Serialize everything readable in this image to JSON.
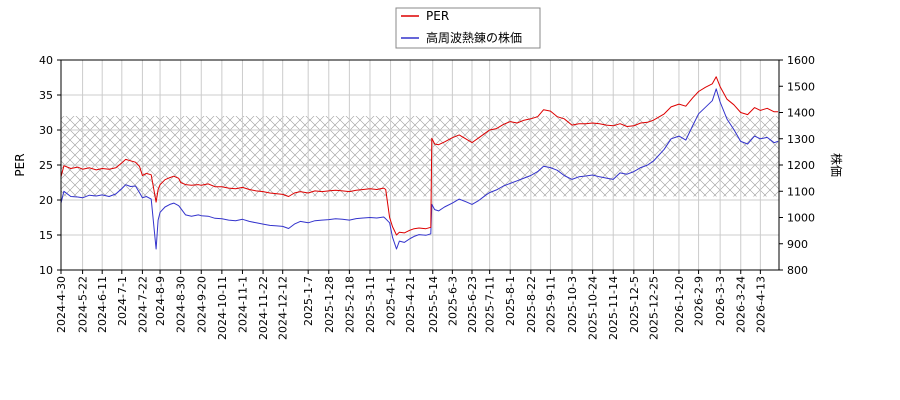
{
  "chart_data": {
    "type": "line",
    "legend": {
      "placement": "top-center",
      "items": [
        {
          "label": "PER",
          "color": "#dd0000"
        },
        {
          "label": "高周波熱錬の株価",
          "color": "#3333cc"
        }
      ]
    },
    "left_axis": {
      "label": "PER",
      "ylim": [
        10,
        40
      ],
      "ticks": [
        10,
        15,
        20,
        25,
        30,
        35,
        40
      ]
    },
    "right_axis": {
      "label": "株価",
      "ylim": [
        800,
        1600
      ],
      "ticks": [
        800,
        900,
        1000,
        1100,
        1200,
        1300,
        1400,
        1500,
        1600
      ]
    },
    "xlim": [
      "2024-04-30",
      "2026-05-02"
    ],
    "x_tick_labels": [
      "2024-4-30",
      "2024-5-22",
      "2024-6-11",
      "2024-7-1",
      "2024-7-22",
      "2024-8-9",
      "2024-8-30",
      "2024-9-20",
      "2024-10-11",
      "2024-11-1",
      "2024-11-22",
      "2024-12-12",
      "2025-1-7",
      "2025-1-28",
      "2025-2-18",
      "2025-3-11",
      "2025-4-1",
      "2025-4-21",
      "2025-5-14",
      "2025-6-3",
      "2025-6-23",
      "2025-7-11",
      "2025-8-1",
      "2025-8-22",
      "2025-9-11",
      "2025-10-3",
      "2025-10-24",
      "2025-11-14",
      "2025-12-5",
      "2025-12-25",
      "2026-1-20",
      "2026-2-9",
      "2026-3-3",
      "2026-3-24",
      "2026-4-13"
    ],
    "band": {
      "axis": "left",
      "range": [
        20.5,
        32
      ],
      "pattern": "crosshatch"
    },
    "grid": true,
    "series": [
      {
        "name": "PER",
        "axis": "left",
        "color": "#dd0000",
        "points": [
          [
            "2024-04-30",
            23.3
          ],
          [
            "2024-05-03",
            24.9
          ],
          [
            "2024-05-10",
            24.5
          ],
          [
            "2024-05-17",
            24.7
          ],
          [
            "2024-05-22",
            24.4
          ],
          [
            "2024-05-29",
            24.6
          ],
          [
            "2024-06-05",
            24.3
          ],
          [
            "2024-06-11",
            24.5
          ],
          [
            "2024-06-18",
            24.4
          ],
          [
            "2024-06-25",
            24.6
          ],
          [
            "2024-07-01",
            25.3
          ],
          [
            "2024-07-05",
            25.8
          ],
          [
            "2024-07-10",
            25.6
          ],
          [
            "2024-07-15",
            25.4
          ],
          [
            "2024-07-19",
            24.8
          ],
          [
            "2024-07-22",
            23.5
          ],
          [
            "2024-07-26",
            23.8
          ],
          [
            "2024-07-31",
            23.6
          ],
          [
            "2024-08-05",
            19.7
          ],
          [
            "2024-08-07",
            21.5
          ],
          [
            "2024-08-09",
            22.2
          ],
          [
            "2024-08-14",
            22.9
          ],
          [
            "2024-08-19",
            23.2
          ],
          [
            "2024-08-23",
            23.4
          ],
          [
            "2024-08-28",
            23.1
          ],
          [
            "2024-08-30",
            22.5
          ],
          [
            "2024-09-04",
            22.2
          ],
          [
            "2024-09-10",
            22.1
          ],
          [
            "2024-09-17",
            22.2
          ],
          [
            "2024-09-20",
            22.1
          ],
          [
            "2024-09-27",
            22.3
          ],
          [
            "2024-10-04",
            21.9
          ],
          [
            "2024-10-11",
            21.9
          ],
          [
            "2024-10-18",
            21.7
          ],
          [
            "2024-10-25",
            21.6
          ],
          [
            "2024-11-01",
            21.8
          ],
          [
            "2024-11-08",
            21.5
          ],
          [
            "2024-11-15",
            21.3
          ],
          [
            "2024-11-22",
            21.2
          ],
          [
            "2024-11-29",
            21.0
          ],
          [
            "2024-12-06",
            20.9
          ],
          [
            "2024-12-12",
            20.8
          ],
          [
            "2024-12-18",
            20.5
          ],
          [
            "2024-12-24",
            21.0
          ],
          [
            "2024-12-30",
            21.2
          ],
          [
            "2025-01-07",
            21.0
          ],
          [
            "2025-01-14",
            21.3
          ],
          [
            "2025-01-21",
            21.2
          ],
          [
            "2025-01-28",
            21.3
          ],
          [
            "2025-02-04",
            21.4
          ],
          [
            "2025-02-11",
            21.3
          ],
          [
            "2025-02-18",
            21.2
          ],
          [
            "2025-02-25",
            21.4
          ],
          [
            "2025-03-04",
            21.5
          ],
          [
            "2025-03-11",
            21.6
          ],
          [
            "2025-03-18",
            21.5
          ],
          [
            "2025-03-25",
            21.7
          ],
          [
            "2025-03-27",
            21.5
          ],
          [
            "2025-03-31",
            17.5
          ],
          [
            "2025-04-03",
            16.2
          ],
          [
            "2025-04-07",
            15.0
          ],
          [
            "2025-04-10",
            15.4
          ],
          [
            "2025-04-15",
            15.3
          ],
          [
            "2025-04-21",
            15.7
          ],
          [
            "2025-04-25",
            15.9
          ],
          [
            "2025-04-30",
            16.0
          ],
          [
            "2025-05-07",
            15.9
          ],
          [
            "2025-05-12",
            16.1
          ],
          [
            "2025-05-13",
            28.8
          ],
          [
            "2025-05-16",
            28.0
          ],
          [
            "2025-05-20",
            27.9
          ],
          [
            "2025-05-26",
            28.3
          ],
          [
            "2025-06-03",
            28.9
          ],
          [
            "2025-06-10",
            29.3
          ],
          [
            "2025-06-17",
            28.7
          ],
          [
            "2025-06-23",
            28.2
          ],
          [
            "2025-06-30",
            28.9
          ],
          [
            "2025-07-07",
            29.6
          ],
          [
            "2025-07-11",
            30.0
          ],
          [
            "2025-07-18",
            30.2
          ],
          [
            "2025-07-25",
            30.8
          ],
          [
            "2025-08-01",
            31.2
          ],
          [
            "2025-08-08",
            31.0
          ],
          [
            "2025-08-15",
            31.4
          ],
          [
            "2025-08-22",
            31.6
          ],
          [
            "2025-08-29",
            31.9
          ],
          [
            "2025-09-04",
            32.9
          ],
          [
            "2025-09-11",
            32.7
          ],
          [
            "2025-09-18",
            31.9
          ],
          [
            "2025-09-25",
            31.6
          ],
          [
            "2025-10-03",
            30.7
          ],
          [
            "2025-10-10",
            30.9
          ],
          [
            "2025-10-17",
            30.9
          ],
          [
            "2025-10-24",
            31.0
          ],
          [
            "2025-10-31",
            30.9
          ],
          [
            "2025-11-07",
            30.7
          ],
          [
            "2025-11-14",
            30.6
          ],
          [
            "2025-11-21",
            30.9
          ],
          [
            "2025-11-28",
            30.5
          ],
          [
            "2025-12-05",
            30.6
          ],
          [
            "2025-12-12",
            31.0
          ],
          [
            "2025-12-19",
            31.1
          ],
          [
            "2025-12-25",
            31.4
          ],
          [
            "2026-01-05",
            32.3
          ],
          [
            "2026-01-12",
            33.3
          ],
          [
            "2026-01-20",
            33.7
          ],
          [
            "2026-01-27",
            33.4
          ],
          [
            "2026-02-03",
            34.6
          ],
          [
            "2026-02-09",
            35.5
          ],
          [
            "2026-02-16",
            36.1
          ],
          [
            "2026-02-23",
            36.6
          ],
          [
            "2026-02-27",
            37.6
          ],
          [
            "2026-03-03",
            36.2
          ],
          [
            "2026-03-10",
            34.4
          ],
          [
            "2026-03-17",
            33.6
          ],
          [
            "2026-03-24",
            32.5
          ],
          [
            "2026-03-31",
            32.2
          ],
          [
            "2026-04-07",
            33.2
          ],
          [
            "2026-04-13",
            32.8
          ],
          [
            "2026-04-20",
            33.1
          ],
          [
            "2026-04-27",
            32.6
          ],
          [
            "2026-05-01",
            32.6
          ]
        ]
      },
      {
        "name": "高周波熱錬の株価",
        "axis": "right",
        "color": "#3333cc",
        "points": [
          [
            "2024-04-30",
            1055
          ],
          [
            "2024-05-03",
            1100
          ],
          [
            "2024-05-10",
            1080
          ],
          [
            "2024-05-17",
            1078
          ],
          [
            "2024-05-22",
            1075
          ],
          [
            "2024-05-29",
            1085
          ],
          [
            "2024-06-05",
            1082
          ],
          [
            "2024-06-11",
            1086
          ],
          [
            "2024-06-18",
            1080
          ],
          [
            "2024-06-25",
            1090
          ],
          [
            "2024-07-01",
            1110
          ],
          [
            "2024-07-05",
            1125
          ],
          [
            "2024-07-10",
            1118
          ],
          [
            "2024-07-15",
            1120
          ],
          [
            "2024-07-19",
            1095
          ],
          [
            "2024-07-22",
            1075
          ],
          [
            "2024-07-26",
            1080
          ],
          [
            "2024-07-31",
            1070
          ],
          [
            "2024-08-05",
            880
          ],
          [
            "2024-08-07",
            990
          ],
          [
            "2024-08-09",
            1020
          ],
          [
            "2024-08-14",
            1040
          ],
          [
            "2024-08-19",
            1050
          ],
          [
            "2024-08-23",
            1055
          ],
          [
            "2024-08-28",
            1045
          ],
          [
            "2024-08-30",
            1035
          ],
          [
            "2024-09-04",
            1010
          ],
          [
            "2024-09-10",
            1005
          ],
          [
            "2024-09-17",
            1010
          ],
          [
            "2024-09-20",
            1007
          ],
          [
            "2024-09-27",
            1005
          ],
          [
            "2024-10-04",
            997
          ],
          [
            "2024-10-11",
            995
          ],
          [
            "2024-10-18",
            990
          ],
          [
            "2024-10-25",
            988
          ],
          [
            "2024-11-01",
            993
          ],
          [
            "2024-11-08",
            985
          ],
          [
            "2024-11-15",
            980
          ],
          [
            "2024-11-22",
            975
          ],
          [
            "2024-11-29",
            970
          ],
          [
            "2024-12-06",
            968
          ],
          [
            "2024-12-12",
            966
          ],
          [
            "2024-12-18",
            958
          ],
          [
            "2024-12-24",
            975
          ],
          [
            "2024-12-30",
            985
          ],
          [
            "2025-01-07",
            980
          ],
          [
            "2025-01-14",
            988
          ],
          [
            "2025-01-21",
            990
          ],
          [
            "2025-01-28",
            992
          ],
          [
            "2025-02-04",
            995
          ],
          [
            "2025-02-11",
            993
          ],
          [
            "2025-02-18",
            990
          ],
          [
            "2025-02-25",
            996
          ],
          [
            "2025-03-04",
            998
          ],
          [
            "2025-03-11",
            1000
          ],
          [
            "2025-03-18",
            998
          ],
          [
            "2025-03-25",
            1002
          ],
          [
            "2025-03-27",
            995
          ],
          [
            "2025-03-31",
            980
          ],
          [
            "2025-04-03",
            925
          ],
          [
            "2025-04-07",
            880
          ],
          [
            "2025-04-10",
            910
          ],
          [
            "2025-04-15",
            905
          ],
          [
            "2025-04-21",
            920
          ],
          [
            "2025-04-25",
            928
          ],
          [
            "2025-04-30",
            935
          ],
          [
            "2025-05-07",
            932
          ],
          [
            "2025-05-12",
            938
          ],
          [
            "2025-05-13",
            1050
          ],
          [
            "2025-05-16",
            1030
          ],
          [
            "2025-05-20",
            1025
          ],
          [
            "2025-05-26",
            1040
          ],
          [
            "2025-06-03",
            1055
          ],
          [
            "2025-06-10",
            1070
          ],
          [
            "2025-06-17",
            1060
          ],
          [
            "2025-06-23",
            1050
          ],
          [
            "2025-06-30",
            1065
          ],
          [
            "2025-07-07",
            1085
          ],
          [
            "2025-07-11",
            1095
          ],
          [
            "2025-07-18",
            1105
          ],
          [
            "2025-07-25",
            1120
          ],
          [
            "2025-08-01",
            1130
          ],
          [
            "2025-08-08",
            1140
          ],
          [
            "2025-08-15",
            1150
          ],
          [
            "2025-08-22",
            1160
          ],
          [
            "2025-08-29",
            1175
          ],
          [
            "2025-09-04",
            1195
          ],
          [
            "2025-09-11",
            1190
          ],
          [
            "2025-09-18",
            1180
          ],
          [
            "2025-09-25",
            1160
          ],
          [
            "2025-10-03",
            1145
          ],
          [
            "2025-10-10",
            1155
          ],
          [
            "2025-10-17",
            1158
          ],
          [
            "2025-10-24",
            1162
          ],
          [
            "2025-10-31",
            1155
          ],
          [
            "2025-11-07",
            1150
          ],
          [
            "2025-11-14",
            1145
          ],
          [
            "2025-11-21",
            1170
          ],
          [
            "2025-11-28",
            1165
          ],
          [
            "2025-12-05",
            1175
          ],
          [
            "2025-12-12",
            1190
          ],
          [
            "2025-12-19",
            1200
          ],
          [
            "2025-12-25",
            1215
          ],
          [
            "2026-01-05",
            1260
          ],
          [
            "2026-01-12",
            1300
          ],
          [
            "2026-01-20",
            1310
          ],
          [
            "2026-01-27",
            1295
          ],
          [
            "2026-02-03",
            1350
          ],
          [
            "2026-02-09",
            1395
          ],
          [
            "2026-02-16",
            1420
          ],
          [
            "2026-02-23",
            1445
          ],
          [
            "2026-02-27",
            1490
          ],
          [
            "2026-03-03",
            1440
          ],
          [
            "2026-03-10",
            1375
          ],
          [
            "2026-03-17",
            1335
          ],
          [
            "2026-03-24",
            1290
          ],
          [
            "2026-03-31",
            1280
          ],
          [
            "2026-04-07",
            1310
          ],
          [
            "2026-04-13",
            1300
          ],
          [
            "2026-04-20",
            1305
          ],
          [
            "2026-04-27",
            1285
          ],
          [
            "2026-05-01",
            1290
          ]
        ]
      }
    ]
  }
}
